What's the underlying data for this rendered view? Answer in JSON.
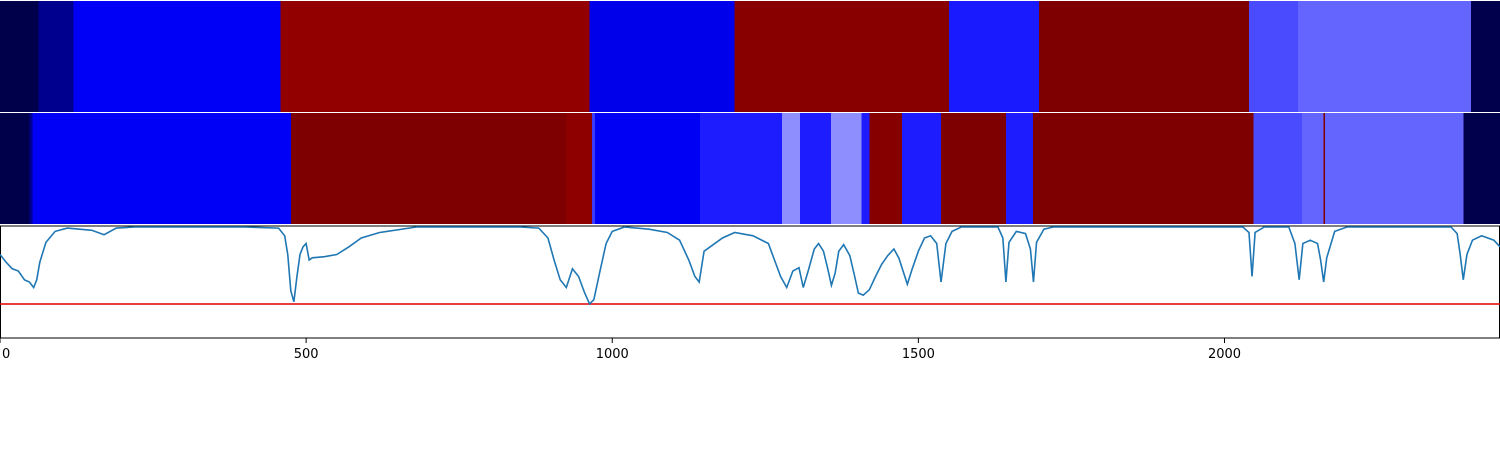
{
  "chart_data": {
    "type": "heatmap",
    "x_range": [
      0,
      2450
    ],
    "x_ticks": [
      {
        "value": 0,
        "label": "0"
      },
      {
        "value": 500,
        "label": "500"
      },
      {
        "value": 1000,
        "label": "1000"
      },
      {
        "value": 1500,
        "label": "1500"
      },
      {
        "value": 2000,
        "label": "2000"
      }
    ],
    "rows": [
      {
        "segments": [
          {
            "start": 0,
            "end": 63,
            "color": "#00004a"
          },
          {
            "start": 63,
            "end": 120,
            "color": "#00008e"
          },
          {
            "start": 120,
            "end": 458,
            "color": "#0000f6"
          },
          {
            "start": 458,
            "end": 963,
            "color": "#930000"
          },
          {
            "start": 963,
            "end": 1200,
            "color": "#0000ea"
          },
          {
            "start": 1200,
            "end": 1550,
            "color": "#890000"
          },
          {
            "start": 1550,
            "end": 1697,
            "color": "#1a1aff"
          },
          {
            "start": 1697,
            "end": 2040,
            "color": "#7f0000"
          },
          {
            "start": 2040,
            "end": 2120,
            "color": "#4a4aff"
          },
          {
            "start": 2120,
            "end": 2403,
            "color": "#6464ff"
          },
          {
            "start": 2403,
            "end": 2450,
            "color": "#00004c"
          }
        ]
      },
      {
        "segments": [
          {
            "start": 0,
            "end": 48,
            "color": "#00004a"
          },
          {
            "start": 48,
            "end": 53,
            "color": "#000090"
          },
          {
            "start": 53,
            "end": 475,
            "color": "#0000f6"
          },
          {
            "start": 475,
            "end": 925,
            "color": "#7f0000"
          },
          {
            "start": 925,
            "end": 967,
            "color": "#8e0000"
          },
          {
            "start": 967,
            "end": 972,
            "color": "#3a3aff"
          },
          {
            "start": 972,
            "end": 1143,
            "color": "#0000f4"
          },
          {
            "start": 1143,
            "end": 1277,
            "color": "#1c1cff"
          },
          {
            "start": 1277,
            "end": 1307,
            "color": "#8e8eff"
          },
          {
            "start": 1307,
            "end": 1357,
            "color": "#1c1cff"
          },
          {
            "start": 1357,
            "end": 1407,
            "color": "#8e8eff"
          },
          {
            "start": 1407,
            "end": 1420,
            "color": "#1c1cff"
          },
          {
            "start": 1420,
            "end": 1473,
            "color": "#860000"
          },
          {
            "start": 1473,
            "end": 1537,
            "color": "#1c1cff"
          },
          {
            "start": 1537,
            "end": 1643,
            "color": "#7f0000"
          },
          {
            "start": 1643,
            "end": 1687,
            "color": "#1c1cff"
          },
          {
            "start": 1687,
            "end": 2047,
            "color": "#7f0000"
          },
          {
            "start": 2047,
            "end": 2127,
            "color": "#4a4aff"
          },
          {
            "start": 2127,
            "end": 2162,
            "color": "#6464ff"
          },
          {
            "start": 2162,
            "end": 2164,
            "color": "#7f0000"
          },
          {
            "start": 2164,
            "end": 2390,
            "color": "#6464ff"
          },
          {
            "start": 2390,
            "end": 2450,
            "color": "#00004c"
          }
        ]
      }
    ],
    "line": {
      "color": "#1f77b4",
      "y_range": [
        0,
        1
      ],
      "points": [
        [
          0,
          0.75
        ],
        [
          10,
          0.68
        ],
        [
          20,
          0.62
        ],
        [
          30,
          0.6
        ],
        [
          40,
          0.52
        ],
        [
          48,
          0.5
        ],
        [
          55,
          0.45
        ],
        [
          60,
          0.52
        ],
        [
          65,
          0.68
        ],
        [
          75,
          0.86
        ],
        [
          90,
          0.96
        ],
        [
          110,
          0.99
        ],
        [
          130,
          0.98
        ],
        [
          150,
          0.97
        ],
        [
          170,
          0.93
        ],
        [
          190,
          0.99
        ],
        [
          220,
          1.0
        ],
        [
          300,
          1.0
        ],
        [
          400,
          1.0
        ],
        [
          455,
          0.99
        ],
        [
          465,
          0.92
        ],
        [
          470,
          0.75
        ],
        [
          475,
          0.42
        ],
        [
          480,
          0.32
        ],
        [
          485,
          0.55
        ],
        [
          490,
          0.75
        ],
        [
          495,
          0.82
        ],
        [
          500,
          0.85
        ],
        [
          505,
          0.7
        ],
        [
          510,
          0.72
        ],
        [
          530,
          0.73
        ],
        [
          550,
          0.75
        ],
        [
          570,
          0.82
        ],
        [
          590,
          0.9
        ],
        [
          620,
          0.95
        ],
        [
          680,
          1.0
        ],
        [
          750,
          1.0
        ],
        [
          850,
          1.0
        ],
        [
          880,
          0.99
        ],
        [
          895,
          0.9
        ],
        [
          905,
          0.7
        ],
        [
          915,
          0.52
        ],
        [
          925,
          0.45
        ],
        [
          935,
          0.62
        ],
        [
          945,
          0.55
        ],
        [
          955,
          0.4
        ],
        [
          963,
          0.3
        ],
        [
          970,
          0.34
        ],
        [
          980,
          0.6
        ],
        [
          990,
          0.85
        ],
        [
          1000,
          0.96
        ],
        [
          1020,
          1.0
        ],
        [
          1060,
          0.98
        ],
        [
          1090,
          0.95
        ],
        [
          1110,
          0.88
        ],
        [
          1125,
          0.7
        ],
        [
          1135,
          0.55
        ],
        [
          1142,
          0.5
        ],
        [
          1150,
          0.78
        ],
        [
          1160,
          0.82
        ],
        [
          1180,
          0.9
        ],
        [
          1200,
          0.95
        ],
        [
          1230,
          0.92
        ],
        [
          1255,
          0.85
        ],
        [
          1265,
          0.7
        ],
        [
          1275,
          0.55
        ],
        [
          1285,
          0.45
        ],
        [
          1295,
          0.6
        ],
        [
          1305,
          0.63
        ],
        [
          1312,
          0.45
        ],
        [
          1320,
          0.6
        ],
        [
          1330,
          0.8
        ],
        [
          1337,
          0.85
        ],
        [
          1345,
          0.78
        ],
        [
          1352,
          0.62
        ],
        [
          1358,
          0.47
        ],
        [
          1364,
          0.58
        ],
        [
          1370,
          0.78
        ],
        [
          1378,
          0.84
        ],
        [
          1388,
          0.74
        ],
        [
          1396,
          0.55
        ],
        [
          1402,
          0.4
        ],
        [
          1410,
          0.38
        ],
        [
          1420,
          0.43
        ],
        [
          1430,
          0.55
        ],
        [
          1440,
          0.66
        ],
        [
          1450,
          0.74
        ],
        [
          1460,
          0.8
        ],
        [
          1468,
          0.72
        ],
        [
          1475,
          0.6
        ],
        [
          1482,
          0.48
        ],
        [
          1490,
          0.62
        ],
        [
          1500,
          0.78
        ],
        [
          1510,
          0.9
        ],
        [
          1520,
          0.92
        ],
        [
          1530,
          0.85
        ],
        [
          1537,
          0.5
        ],
        [
          1545,
          0.85
        ],
        [
          1555,
          0.96
        ],
        [
          1570,
          1.0
        ],
        [
          1630,
          1.0
        ],
        [
          1638,
          0.9
        ],
        [
          1643,
          0.5
        ],
        [
          1648,
          0.86
        ],
        [
          1660,
          0.96
        ],
        [
          1675,
          0.94
        ],
        [
          1683,
          0.8
        ],
        [
          1688,
          0.5
        ],
        [
          1693,
          0.86
        ],
        [
          1705,
          0.98
        ],
        [
          1720,
          1.0
        ],
        [
          2030,
          1.0
        ],
        [
          2040,
          0.95
        ],
        [
          2045,
          0.55
        ],
        [
          2050,
          0.95
        ],
        [
          2065,
          1.0
        ],
        [
          2105,
          1.0
        ],
        [
          2115,
          0.85
        ],
        [
          2122,
          0.52
        ],
        [
          2128,
          0.85
        ],
        [
          2140,
          0.88
        ],
        [
          2152,
          0.85
        ],
        [
          2157,
          0.7
        ],
        [
          2162,
          0.5
        ],
        [
          2167,
          0.72
        ],
        [
          2180,
          0.96
        ],
        [
          2200,
          1.0
        ],
        [
          2370,
          1.0
        ],
        [
          2380,
          0.94
        ],
        [
          2385,
          0.75
        ],
        [
          2390,
          0.52
        ],
        [
          2396,
          0.75
        ],
        [
          2405,
          0.88
        ],
        [
          2420,
          0.92
        ],
        [
          2440,
          0.88
        ],
        [
          2450,
          0.82
        ]
      ]
    },
    "threshold": {
      "value": 0.3,
      "color": "#e00000"
    }
  }
}
